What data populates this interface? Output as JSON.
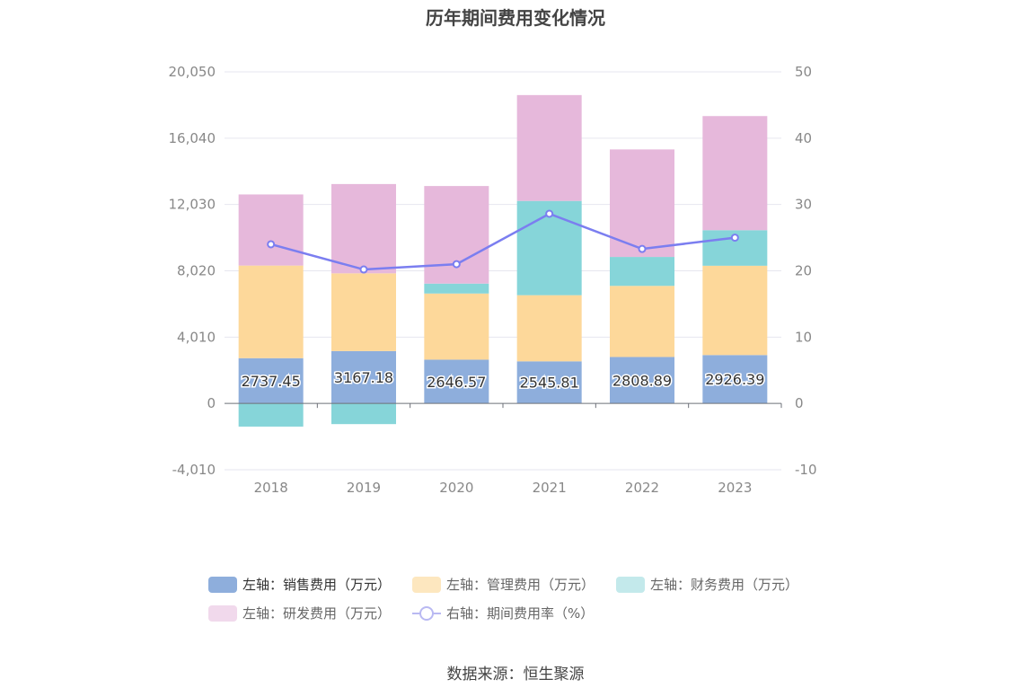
{
  "title": "历年期间费用变化情况",
  "source": "数据来源：恒生聚源",
  "colors": {
    "sales": "#8eaedc",
    "admin": "#fdd89a",
    "finance": "#86d5d9",
    "rnd": "#e6b8db",
    "rate_line": "#7b7ef0",
    "grid": "#e6e6ef",
    "axis_text": "#888888"
  },
  "legend": [
    {
      "label": "左轴：销售费用（万元）",
      "color": "#8eaedc",
      "kind": "bar"
    },
    {
      "label": "左轴：管理费用（万元）",
      "color": "#fde7bf",
      "kind": "bar"
    },
    {
      "label": "左轴：财务费用（万元）",
      "color": "#c3e9eb",
      "kind": "bar"
    },
    {
      "label": "左轴：研发费用（万元）",
      "color": "#f1d9ec",
      "kind": "bar"
    },
    {
      "label": "右轴：期间费用率（%）",
      "color": "#b9b9f2",
      "kind": "line"
    }
  ],
  "chart_data": {
    "type": "bar",
    "stacked": true,
    "categories": [
      "2018",
      "2019",
      "2020",
      "2021",
      "2022",
      "2023"
    ],
    "series": [
      {
        "name": "左轴：销售费用（万元）",
        "axis": "left",
        "values": [
          2737.45,
          3167.18,
          2646.57,
          2545.81,
          2808.89,
          2926.39
        ],
        "data_labels": [
          "2737.45",
          "3167.18",
          "2646.57",
          "2545.81",
          "2808.89",
          "2926.39"
        ]
      },
      {
        "name": "左轴：管理费用（万元）",
        "axis": "left",
        "values": [
          5600,
          4700,
          4000,
          4000,
          4300,
          5400
        ]
      },
      {
        "name": "左轴：财务费用（万元）",
        "axis": "left",
        "values": [
          -1400,
          -1250,
          600,
          5700,
          1750,
          2150
        ]
      },
      {
        "name": "左轴：研发费用（万元）",
        "axis": "left",
        "values": [
          4300,
          5400,
          5900,
          6400,
          6500,
          6900
        ]
      },
      {
        "name": "右轴：期间费用率（%）",
        "axis": "right",
        "type": "line",
        "values": [
          24.0,
          20.2,
          21.0,
          28.6,
          23.3,
          25.0
        ]
      }
    ],
    "left_axis": {
      "ylim": [
        -4010,
        20050
      ],
      "ticks": [
        "-4,010",
        "0",
        "4,010",
        "8,020",
        "12,030",
        "16,040",
        "20,050"
      ],
      "tick_values": [
        -4010,
        0,
        4010,
        8020,
        12030,
        16040,
        20050
      ]
    },
    "right_axis": {
      "ylim": [
        -10,
        50
      ],
      "ticks": [
        "-10",
        "0",
        "10",
        "20",
        "30",
        "40",
        "50"
      ],
      "tick_values": [
        -10,
        0,
        10,
        20,
        30,
        40,
        50
      ]
    },
    "grid": true,
    "legend_position": "bottom"
  }
}
